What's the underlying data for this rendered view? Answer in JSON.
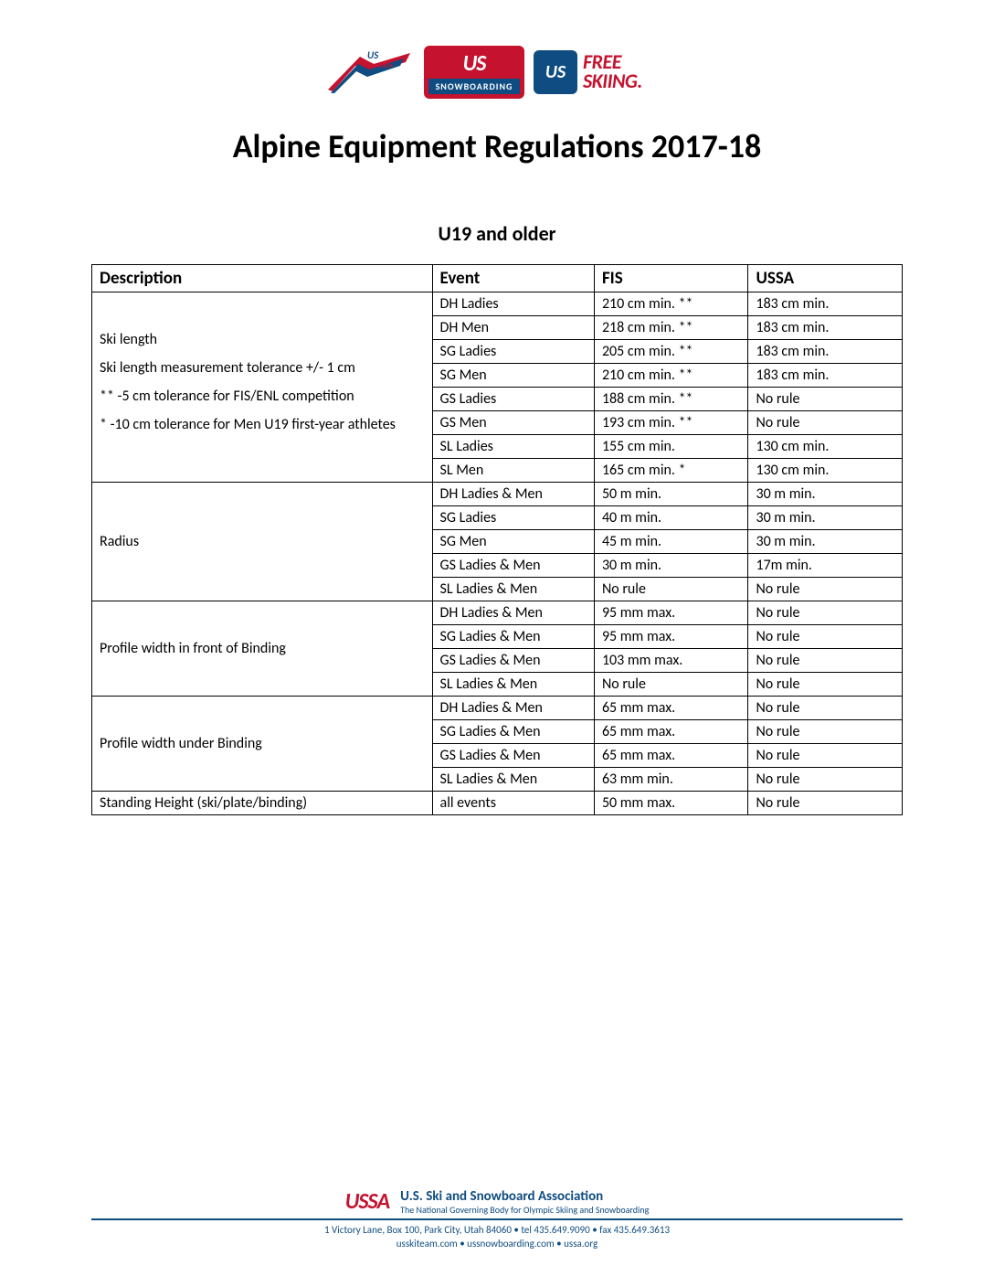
{
  "title": "Alpine Equipment Regulations 2017-18",
  "subtitle": "U19 and older",
  "logos": {
    "snowboard_us": "US",
    "snowboard_label": "SNOWBOARDING",
    "freeski_us": "US",
    "freeski_text": "FREE SKIING"
  },
  "table": {
    "headers": {
      "description": "Description",
      "event": "Event",
      "fis": "FIS",
      "ussa": "USSA"
    },
    "sections": [
      {
        "desc_lines": [
          "Ski length",
          "Ski length measurement tolerance +/- 1 cm",
          "** -5 cm tolerance for FIS/ENL competition",
          "* -10 cm tolerance for Men U19 first-year athletes"
        ],
        "rows": [
          {
            "event": "DH Ladies",
            "fis": "210 cm min. **",
            "ussa": "183 cm min."
          },
          {
            "event": "DH Men",
            "fis": "218 cm min. **",
            "ussa": "183 cm min."
          },
          {
            "event": "SG Ladies",
            "fis": "205 cm min. **",
            "ussa": "183 cm min."
          },
          {
            "event": "SG Men",
            "fis": "210 cm min. **",
            "ussa": "183 cm min."
          },
          {
            "event": "GS Ladies",
            "fis": "188 cm min. **",
            "ussa": "No rule"
          },
          {
            "event": "GS Men",
            "fis": "193 cm min. **",
            "ussa": "No rule"
          },
          {
            "event": "SL Ladies",
            "fis": "155 cm min.",
            "ussa": "130 cm min."
          },
          {
            "event": "SL Men",
            "fis": "165 cm min. *",
            "ussa": "130 cm min."
          }
        ]
      },
      {
        "desc_lines": [
          "Radius"
        ],
        "rows": [
          {
            "event": "DH Ladies & Men",
            "fis": "50 m min.",
            "ussa": "30 m min."
          },
          {
            "event": "SG Ladies",
            "fis": "40 m min.",
            "ussa": "30 m min."
          },
          {
            "event": "SG Men",
            "fis": "45 m min.",
            "ussa": "30 m min."
          },
          {
            "event": "GS Ladies & Men",
            "fis": "30 m min.",
            "ussa": "17m min."
          },
          {
            "event": "SL Ladies & Men",
            "fis": "No rule",
            "ussa": "No rule"
          }
        ]
      },
      {
        "desc_lines": [
          "Profile width in front of Binding"
        ],
        "rows": [
          {
            "event": "DH Ladies & Men",
            "fis": "95 mm max.",
            "ussa": "No rule"
          },
          {
            "event": "SG Ladies & Men",
            "fis": "95 mm max.",
            "ussa": "No rule"
          },
          {
            "event": "GS Ladies & Men",
            "fis": "103 mm max.",
            "ussa": "No rule"
          },
          {
            "event": "SL Ladies & Men",
            "fis": "No rule",
            "ussa": "No rule"
          }
        ]
      },
      {
        "desc_lines": [
          "Profile width under Binding"
        ],
        "rows": [
          {
            "event": "DH Ladies & Men",
            "fis": "65 mm max.",
            "ussa": "No rule"
          },
          {
            "event": "SG Ladies & Men",
            "fis": "65 mm max.",
            "ussa": "No rule"
          },
          {
            "event": "GS Ladies & Men",
            "fis": "65 mm max.",
            "ussa": "No rule"
          },
          {
            "event": "SL Ladies & Men",
            "fis": "63 mm min.",
            "ussa": "No rule"
          }
        ]
      },
      {
        "desc_lines": [
          "Standing Height (ski/plate/binding)"
        ],
        "rows": [
          {
            "event": "all events",
            "fis": "50 mm max.",
            "ussa": "No rule"
          }
        ]
      }
    ]
  },
  "footer": {
    "logo_text": "USSA",
    "org_name": "U.S. Ski and Snowboard Association",
    "org_tagline": "The National Governing Body for Olympic Skiing and Snowboarding",
    "address_line1": "1 Victory Lane, Box 100, Park City, Utah 84060 • tel 435.649.9090 • fax 435.649.3613",
    "address_line2": "usskiteam.com • ussnowboarding.com • ussa.org"
  },
  "colors": {
    "red": "#c5122e",
    "blue": "#0f4c81",
    "border": "#000000",
    "background": "#ffffff"
  }
}
